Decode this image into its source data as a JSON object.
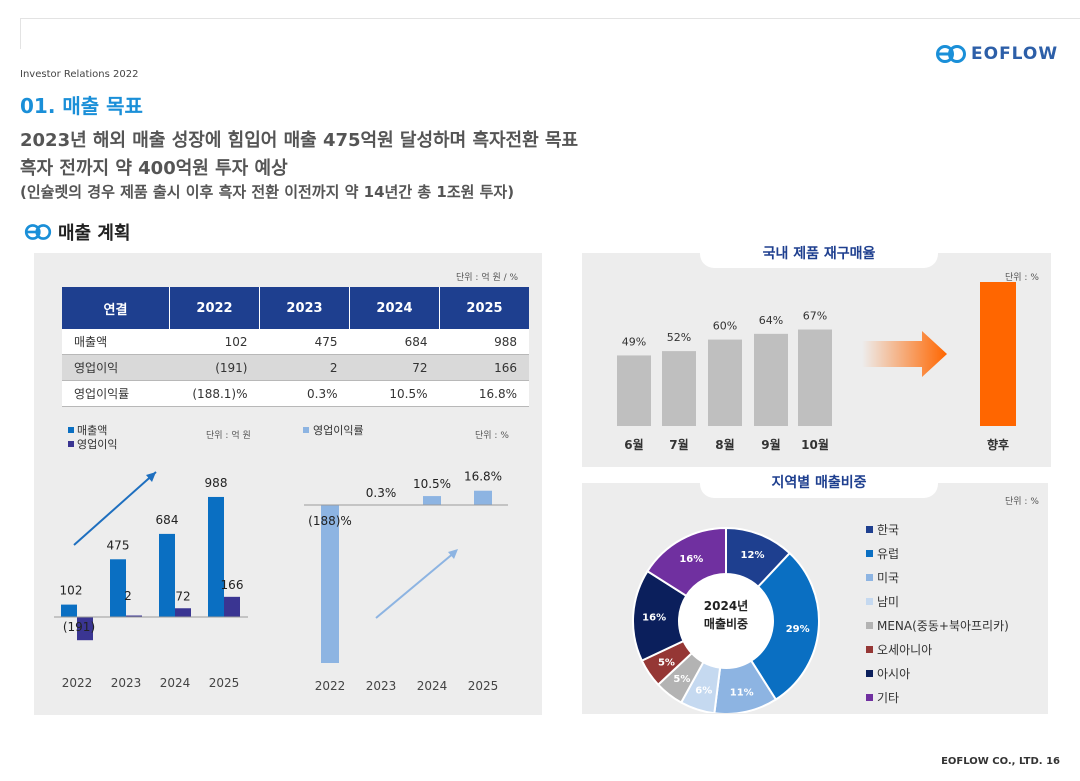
{
  "header": {
    "brand": "EOFLOW",
    "context": "Investor Relations 2022",
    "section_title": "01. 매출 목표",
    "subtitle_lines": [
      "2023년 해외 매출 성장에 힘입어 매출 475억원 달성하며 흑자전환 목표",
      "흑자 전까지 약 400억원 투자 예상",
      "(인슐렛의 경우 제품 출시 이후 흑자 전환 이전까지 약 14년간 총 1조원 투자)"
    ],
    "plan_heading": "매출 계획"
  },
  "table": {
    "unit": "단위 : 억 원 / %",
    "headers": [
      "연결",
      "2022",
      "2023",
      "2024",
      "2025"
    ],
    "rows": [
      {
        "label": "매출액",
        "values": [
          "102",
          "475",
          "684",
          "988"
        ]
      },
      {
        "label": "영업이익",
        "values": [
          "(191)",
          "2",
          "72",
          "166"
        ]
      },
      {
        "label": "영업이익률",
        "values": [
          "(188.1)%",
          "0.3%",
          "10.5%",
          "16.8%"
        ]
      }
    ]
  },
  "chart_data": [
    {
      "type": "bar",
      "unit": "단위 : 억 원",
      "categories": [
        "2022",
        "2023",
        "2024",
        "2025"
      ],
      "series": [
        {
          "name": "매출액",
          "values": [
            102,
            475,
            684,
            988
          ],
          "labels": [
            "102",
            "475",
            "684",
            "988"
          ],
          "color": "#0a6fc2"
        },
        {
          "name": "영업이익",
          "values": [
            -191,
            2,
            72,
            166
          ],
          "labels": [
            "(191)",
            "2",
            "72",
            "166"
          ],
          "color": "#3a3592"
        }
      ]
    },
    {
      "type": "bar",
      "unit": "단위 : %",
      "categories": [
        "2022",
        "2023",
        "2024",
        "2025"
      ],
      "series": [
        {
          "name": "영업이익률",
          "values": [
            -188.1,
            0.3,
            10.5,
            16.8
          ],
          "labels": [
            "(188)%",
            "0.3%",
            "10.5%",
            "16.8%"
          ],
          "color": "#8db4e2"
        }
      ]
    },
    {
      "type": "bar",
      "title": "국내 제품 재구매율",
      "unit": "단위 : %",
      "categories": [
        "6월",
        "7월",
        "8월",
        "9월",
        "10월",
        "향후"
      ],
      "values": [
        49,
        52,
        60,
        64,
        67,
        null
      ],
      "labels": [
        "49%",
        "52%",
        "60%",
        "64%",
        "67%",
        ""
      ],
      "ylim": [
        0,
        100
      ]
    },
    {
      "type": "pie",
      "title": "지역별 매출비중",
      "unit": "단위 : %",
      "center_label": [
        "2024년",
        "매출비중"
      ],
      "slices": [
        {
          "name": "한국",
          "value": 12,
          "label": "12%",
          "color": "#1e3f8f"
        },
        {
          "name": "유럽",
          "value": 29,
          "label": "29%",
          "color": "#0a6fc2"
        },
        {
          "name": "미국",
          "value": 11,
          "label": "11%",
          "color": "#8db4e2"
        },
        {
          "name": "남미",
          "value": 6,
          "label": "6%",
          "color": "#c5d9f0"
        },
        {
          "name": "MENA(중동+북아프리카)",
          "value": 5,
          "label": "5%",
          "color": "#b3b3b3"
        },
        {
          "name": "오세아니아",
          "value": 5,
          "label": "5%",
          "color": "#953735"
        },
        {
          "name": "아시아",
          "value": 16,
          "label": "16%",
          "color": "#0b1f5c"
        },
        {
          "name": "기타",
          "value": 16,
          "label": "16%",
          "color": "#7030a0"
        }
      ]
    }
  ],
  "footer": {
    "text": "EOFLOW CO., LTD. 16"
  },
  "colors": {
    "accent": "#1a8fd8",
    "navy": "#1e3f8f",
    "orange": "#ff6600"
  }
}
